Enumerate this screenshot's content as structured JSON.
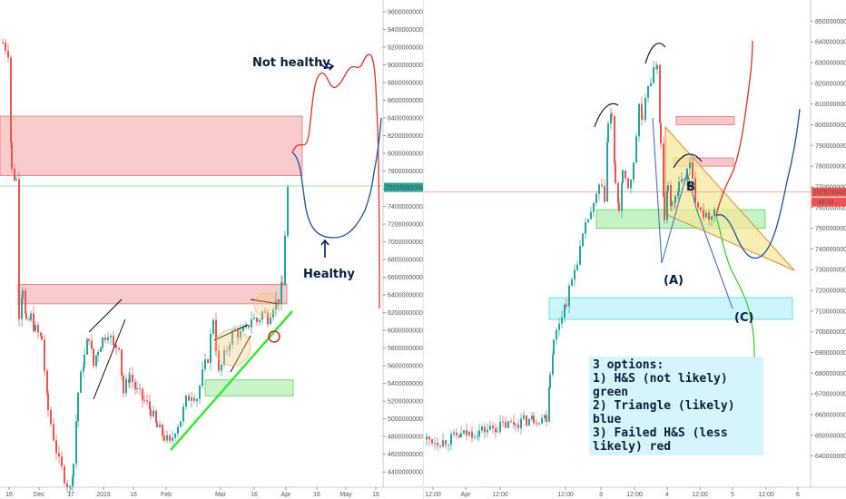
{
  "chart_data": [
    {
      "type": "candlestick",
      "panel": "left",
      "ylim": [
        4300000000,
        9650000000
      ],
      "y_ticks": [
        4400000000,
        4600000000,
        4800000000,
        5000000000,
        5200000000,
        5400000000,
        5600000000,
        5800000000,
        6000000000,
        6200000000,
        6400000000,
        6600000000,
        6800000000,
        7000000000,
        7200000000,
        7400000000,
        7600000000,
        7800000000,
        8000000000,
        8200000000,
        8400000000,
        8600000000,
        8800000000,
        9000000000,
        9200000000,
        9400000000,
        9600000000
      ],
      "x_ticks": [
        "16",
        "Dec",
        "17",
        "2019",
        "16",
        "Feb",
        "Mar",
        "16",
        "Apr",
        "16",
        "May",
        "16"
      ],
      "last_price_label": "76155085344",
      "annotations": [
        {
          "text": "Not healthy"
        },
        {
          "text": "Healthy"
        }
      ],
      "colors": {
        "up": "#26a69a",
        "down": "#ef5350",
        "red_zone": "#f7b9bb",
        "green_zone": "#b7f0b7",
        "trendline": "#39e639"
      },
      "zones": [
        {
          "color": "red",
          "y_from": 7750000000,
          "y_to": 8420000000
        },
        {
          "color": "red",
          "y_from": 6300000000,
          "y_to": 6520000000
        },
        {
          "color": "green",
          "y_from": 5260000000,
          "y_to": 5440000000
        }
      ]
    },
    {
      "type": "candlestick",
      "panel": "right",
      "ylim": [
        6350000000,
        8550000000
      ],
      "y_ticks": [
        6400000000,
        6500000000,
        6600000000,
        6700000000,
        6800000000,
        6900000000,
        7000000000,
        7100000000,
        7200000000,
        7300000000,
        7400000000,
        7500000000,
        7600000000,
        7700000000,
        7800000000,
        7900000000,
        8000000000,
        8100000000,
        8200000000,
        8300000000,
        8400000000,
        8500000000
      ],
      "x_ticks": [
        "12:00",
        "Apr",
        "12:00",
        "12:00",
        "3",
        "12:00",
        "4",
        "12:00",
        "5",
        "12:00",
        "6"
      ],
      "last_price_label": "76757334310",
      "time_label": "49:36",
      "pattern_labels": [
        "(A)",
        "B",
        "(C)"
      ],
      "colors": {
        "up": "#26a69a",
        "down": "#ef5350",
        "triangle": "#f3e89a",
        "cyan_zone": "#bff3f7",
        "green_zone": "#b7f0b7",
        "red_zone": "#f7b9bb"
      },
      "zones": [
        {
          "color": "green",
          "y_from": 7500000000,
          "y_to": 7590000000
        },
        {
          "color": "cyan",
          "y_from": 7060000000,
          "y_to": 7165000000
        },
        {
          "color": "red",
          "y_from": 8000000000,
          "y_to": 8040000000
        },
        {
          "color": "red",
          "y_from": 7800000000,
          "y_to": 7840000000
        }
      ]
    }
  ],
  "note": {
    "line1": "3 options:",
    "line2": "1) H&S (not likely) green",
    "line3": "2) Triangle (likely) blue",
    "line4": "3) Failed H&S (less likely) red"
  }
}
